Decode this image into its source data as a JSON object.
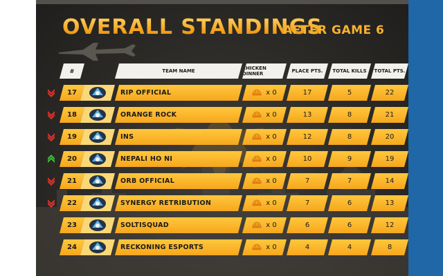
{
  "header": {
    "title": "OVERALL STANDINGS",
    "subtitle": "AFTER GAME 6"
  },
  "columns": {
    "rank": "#",
    "team": "TEAM NAME",
    "chicken": "CHICKEN DINNER",
    "place": "PLACE PTS.",
    "kills": "TOTAL KILLS",
    "total": "TOTAL PTS."
  },
  "colors": {
    "row_accent": "#f6a71d",
    "title_gold": "#f7b22e",
    "trend_down": "#e4312b",
    "trend_up": "#3fbf3c",
    "side_blue": "#1f67a6"
  },
  "rows": [
    {
      "trend": "down",
      "rank": "17",
      "team": "RIP OFFICIAL",
      "dinner": "x 0",
      "place": "17",
      "kills": "5",
      "total": "22",
      "logo_icon": "rip-official-logo"
    },
    {
      "trend": "down",
      "rank": "18",
      "team": "ORANGE ROCK",
      "dinner": "x 0",
      "place": "13",
      "kills": "8",
      "total": "21",
      "logo_icon": "orange-rock-logo"
    },
    {
      "trend": "down",
      "rank": "19",
      "team": "INS",
      "dinner": "x 0",
      "place": "12",
      "kills": "8",
      "total": "20",
      "logo_icon": "ins-logo"
    },
    {
      "trend": "up",
      "rank": "20",
      "team": "NEPALI HO NI",
      "dinner": "x 0",
      "place": "10",
      "kills": "9",
      "total": "19",
      "logo_icon": "nepali-ho-ni-logo"
    },
    {
      "trend": "down",
      "rank": "21",
      "team": "ORB OFFICIAL",
      "dinner": "x 0",
      "place": "7",
      "kills": "7",
      "total": "14",
      "logo_icon": "orb-official-logo"
    },
    {
      "trend": "down",
      "rank": "22",
      "team": "SYNERGY RETRIBUTION",
      "dinner": "x 0",
      "place": "7",
      "kills": "6",
      "total": "13",
      "logo_icon": "synergy-retribution-logo"
    },
    {
      "trend": "none",
      "rank": "23",
      "team": "SOLTISQUAD",
      "dinner": "x 0",
      "place": "6",
      "kills": "6",
      "total": "12",
      "logo_icon": "soltisquad-logo"
    },
    {
      "trend": "none",
      "rank": "24",
      "team": "RECKONING ESPORTS",
      "dinner": "x 0",
      "place": "4",
      "kills": "4",
      "total": "8",
      "logo_icon": "reckoning-esports-logo"
    }
  ]
}
